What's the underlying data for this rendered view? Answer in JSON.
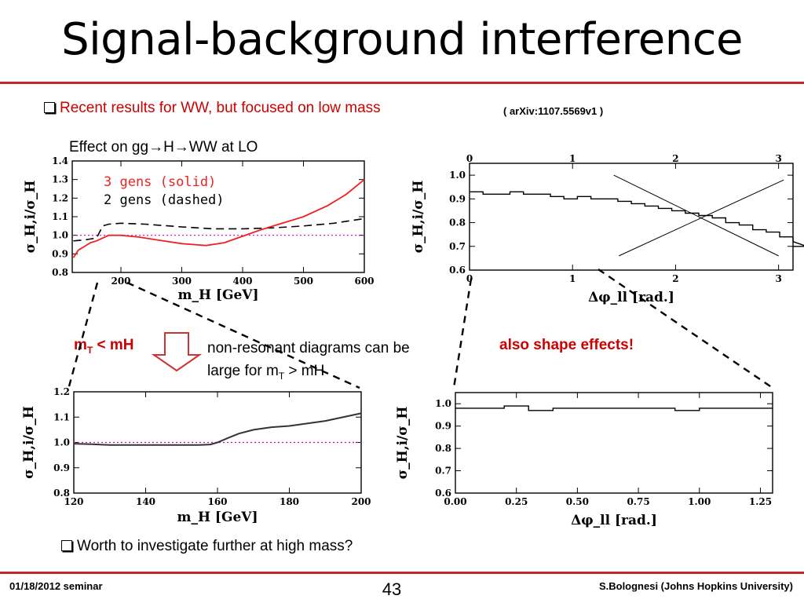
{
  "title": "Signal-background interference",
  "bullet1": "Recent results for WW, but focused on low mass",
  "arxiv": "( arXiv:1107.5569v1 )",
  "effect_prefix": "Effect on gg",
  "effect_mid": "H",
  "effect_suffix": "WW at LO",
  "mt_m": "m",
  "mt_sub": "T",
  "mt_rest": " < mH",
  "nonres_line1": "non-resonant diagrams can be",
  "nonres_line2_a": "large for m",
  "nonres_line2_sub": "T",
  "nonres_line2_b": " > mH",
  "shape_effects": "also shape effects!",
  "bullet2": "Worth to investigate further at high mass?",
  "footer": {
    "date": "01/18/2012 seminar",
    "page": "43",
    "author": "S.Bolognesi (Johns Hopkins University)"
  },
  "colors": {
    "accent": "#c0292b",
    "red_text": "#cc0000",
    "solid_curve": "#ee2222",
    "reference_line": "#cc00cc"
  },
  "chart_data": [
    {
      "type": "line",
      "xlabel": "m_H [GeV]",
      "ylabel": "σ_H,i/σ_H",
      "xlim": [
        120,
        600
      ],
      "ylim": [
        0.8,
        1.4
      ],
      "xticks": [
        200,
        300,
        400,
        500,
        600
      ],
      "yticks": [
        0.8,
        0.9,
        1.0,
        1.1,
        1.2,
        1.3,
        1.4
      ],
      "reference_line": 1.0,
      "legend_placement": "top-left",
      "series": [
        {
          "name": "3 gens (solid)",
          "style": "solid",
          "color": "#ee2222",
          "x": [
            122,
            130,
            140,
            150,
            160,
            170,
            180,
            200,
            230,
            260,
            300,
            340,
            370,
            400,
            430,
            460,
            500,
            540,
            570,
            600
          ],
          "y": [
            0.88,
            0.92,
            0.94,
            0.96,
            0.97,
            0.985,
            1.0,
            1.0,
            0.99,
            0.975,
            0.955,
            0.945,
            0.96,
            0.995,
            1.03,
            1.06,
            1.1,
            1.16,
            1.22,
            1.3
          ]
        },
        {
          "name": "2 gens (dashed)",
          "style": "dashed",
          "color": "#000000",
          "x": [
            122,
            140,
            160,
            170,
            180,
            200,
            240,
            300,
            350,
            400,
            450,
            500,
            550,
            600
          ],
          "y": [
            0.97,
            0.975,
            0.985,
            1.05,
            1.06,
            1.065,
            1.06,
            1.045,
            1.035,
            1.035,
            1.04,
            1.05,
            1.065,
            1.09
          ]
        }
      ]
    },
    {
      "type": "line",
      "style": "step",
      "xlabel": "Δφ_ll [rad.]",
      "ylabel": "σ_H,i/σ_H",
      "xlim": [
        0,
        3.14
      ],
      "ylim": [
        0.6,
        1.05
      ],
      "xticks": [
        0,
        1,
        2,
        3
      ],
      "yticks": [
        0.6,
        0.7,
        0.8,
        0.9,
        1.0
      ],
      "bin_width": 0.1309,
      "values": [
        0.93,
        0.92,
        0.92,
        0.93,
        0.92,
        0.92,
        0.91,
        0.9,
        0.91,
        0.9,
        0.9,
        0.89,
        0.88,
        0.87,
        0.86,
        0.85,
        0.84,
        0.83,
        0.82,
        0.8,
        0.79,
        0.77,
        0.76,
        0.74,
        0.72,
        0.7
      ]
    },
    {
      "type": "line",
      "xlabel": "m_H [GeV]",
      "ylabel": "σ_H,i/σ_H",
      "xlim": [
        120,
        200
      ],
      "ylim": [
        0.8,
        1.2
      ],
      "xticks": [
        120,
        140,
        160,
        180,
        200
      ],
      "yticks": [
        0.8,
        0.9,
        1.0,
        1.1,
        1.2
      ],
      "reference_line": 1.0,
      "series": [
        {
          "x": [
            120,
            125,
            130,
            140,
            150,
            155,
            158,
            160,
            163,
            166,
            170,
            175,
            180,
            190,
            200
          ],
          "y": [
            0.995,
            0.993,
            0.99,
            0.99,
            0.99,
            0.99,
            0.992,
            1.0,
            1.018,
            1.035,
            1.05,
            1.06,
            1.065,
            1.085,
            1.115
          ]
        }
      ]
    },
    {
      "type": "line",
      "style": "step",
      "xlabel": "Δφ_ll [rad.]",
      "ylabel": "σ_H,i/σ_H",
      "xlim": [
        0,
        1.3
      ],
      "ylim": [
        0.6,
        1.05
      ],
      "xticks": [
        0.0,
        0.25,
        0.5,
        0.75,
        1.0,
        1.25
      ],
      "yticks": [
        0.6,
        0.7,
        0.8,
        0.9,
        1.0
      ],
      "bin_width": 0.1,
      "values": [
        0.98,
        0.98,
        0.99,
        0.97,
        0.98,
        0.98,
        0.98,
        0.98,
        0.98,
        0.97,
        0.98,
        0.98,
        0.98
      ]
    }
  ]
}
